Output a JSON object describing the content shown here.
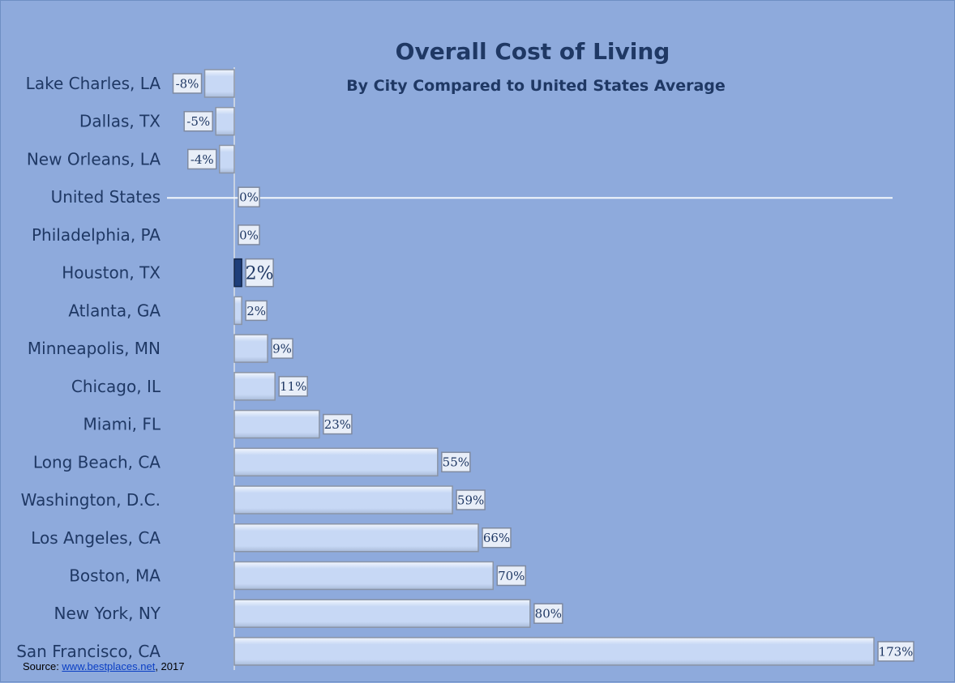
{
  "chart_data": {
    "type": "bar",
    "orientation": "horizontal",
    "title": "Overall Cost of Living",
    "subtitle": "By City Compared to United States Average",
    "categories": [
      "Lake Charles, LA",
      "Dallas, TX",
      "New Orleans, LA",
      "United States",
      "Philadelphia, PA",
      "Houston, TX",
      "Atlanta, GA",
      "Minneapolis, MN",
      "Chicago, IL",
      "Miami, FL",
      "Long Beach, CA",
      "Washington, D.C.",
      "Los Angeles,  CA",
      "Boston, MA",
      "New York, NY",
      "San Francisco, CA"
    ],
    "values": [
      -8,
      -5,
      -4,
      0,
      0,
      2,
      2,
      9,
      11,
      23,
      55,
      59,
      66,
      70,
      80,
      173
    ],
    "value_labels": [
      "-8%",
      "-5%",
      "-4%",
      "0%",
      "0%",
      "2%",
      "2%",
      "9%",
      "11%",
      "23%",
      "55%",
      "59%",
      "66%",
      "70%",
      "80%",
      "173%"
    ],
    "highlight_category": "Houston, TX",
    "reference_line": "United States",
    "xlim": [
      -8,
      173
    ],
    "grid": false,
    "legend": "none",
    "colors": {
      "background": "#8eaadc",
      "bar_fill": "#c7d8f5",
      "bar_edge": "#8a94a6",
      "highlight_bar": "#1f3f7a",
      "text": "#1f3864"
    }
  },
  "source": {
    "prefix": "Source: ",
    "link_text": "www.bestplaces.net",
    "suffix": ", 2017"
  }
}
